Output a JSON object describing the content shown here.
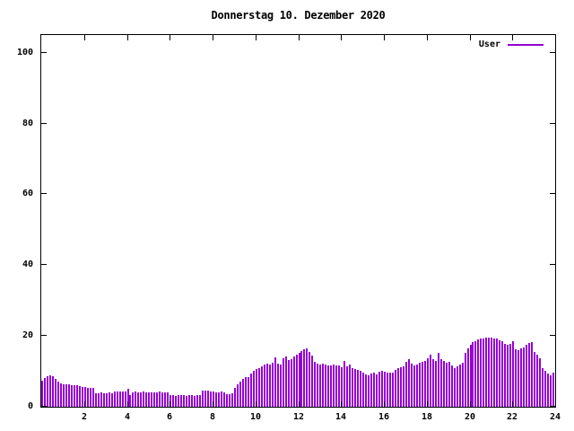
{
  "title": "Donnerstag 10. Dezember 2020",
  "legend": {
    "label": "User"
  },
  "colors": {
    "series": "#9400d3",
    "axis": "#000000",
    "background": "#ffffff"
  },
  "chart_data": {
    "type": "bar",
    "bar_style": "impulses",
    "title": "Donnerstag 10. Dezember 2020",
    "xlabel": "",
    "ylabel": "",
    "xlim": [
      0,
      24
    ],
    "ylim": [
      0,
      105
    ],
    "x_ticks": [
      2,
      4,
      6,
      8,
      10,
      12,
      14,
      16,
      18,
      20,
      22,
      24
    ],
    "y_ticks": [
      0,
      20,
      40,
      60,
      80,
      100
    ],
    "grid": false,
    "legend_position": "top-right-inside",
    "x_unit": "hour-of-day",
    "samples_per_hour": 8,
    "series": [
      {
        "name": "User",
        "color": "#9400d3",
        "values": [
          7.4,
          8.0,
          8.7,
          9.0,
          8.5,
          7.8,
          7.0,
          6.6,
          6.4,
          6.3,
          6.3,
          6.2,
          6.1,
          6.0,
          5.8,
          5.6,
          5.5,
          5.4,
          5.4,
          5.3,
          3.9,
          3.9,
          4.0,
          3.9,
          3.9,
          4.0,
          3.9,
          4.3,
          4.3,
          4.2,
          4.3,
          4.2,
          5.1,
          3.3,
          4.1,
          4.2,
          4.1,
          4.1,
          4.2,
          4.1,
          4.1,
          4.0,
          4.1,
          4.1,
          4.2,
          4.1,
          4.0,
          4.1,
          3.3,
          3.2,
          3.1,
          3.2,
          3.3,
          3.2,
          3.1,
          3.2,
          3.2,
          3.1,
          3.2,
          3.3,
          4.5,
          4.6,
          4.5,
          4.4,
          4.2,
          4.1,
          4.1,
          4.2,
          4.1,
          3.6,
          3.5,
          3.7,
          5.4,
          6.3,
          7.2,
          7.9,
          8.3,
          8.4,
          9.3,
          10.2,
          10.6,
          10.9,
          11.4,
          11.8,
          12.2,
          11.9,
          12.4,
          14.0,
          12.1,
          11.9,
          13.8,
          14.2,
          13.2,
          13.4,
          14.2,
          14.8,
          15.1,
          15.6,
          16.2,
          16.4,
          15.5,
          14.5,
          12.8,
          12.2,
          12.0,
          12.2,
          11.8,
          11.7,
          11.7,
          11.8,
          11.7,
          11.6,
          11.2,
          13.0,
          11.5,
          11.8,
          10.9,
          10.6,
          10.4,
          10.2,
          9.6,
          9.2,
          8.9,
          9.4,
          9.6,
          9.2,
          10.0,
          10.2,
          9.8,
          9.6,
          9.6,
          9.7,
          10.5,
          10.9,
          11.2,
          11.4,
          12.7,
          13.5,
          12.2,
          11.6,
          11.9,
          12.4,
          12.8,
          13.0,
          13.8,
          14.7,
          13.5,
          13.0,
          15.2,
          13.4,
          13.0,
          12.4,
          12.8,
          11.6,
          10.9,
          11.4,
          11.9,
          12.5,
          15.1,
          16.4,
          17.6,
          18.2,
          18.5,
          18.9,
          19.2,
          19.4,
          19.5,
          19.6,
          19.6,
          19.4,
          19.3,
          18.8,
          18.5,
          17.8,
          17.6,
          17.7,
          18.5,
          16.2,
          16.0,
          16.4,
          16.8,
          17.4,
          17.9,
          18.3,
          15.4,
          14.8,
          13.6,
          10.8,
          10.2,
          9.3,
          9.0,
          9.6
        ]
      }
    ]
  }
}
